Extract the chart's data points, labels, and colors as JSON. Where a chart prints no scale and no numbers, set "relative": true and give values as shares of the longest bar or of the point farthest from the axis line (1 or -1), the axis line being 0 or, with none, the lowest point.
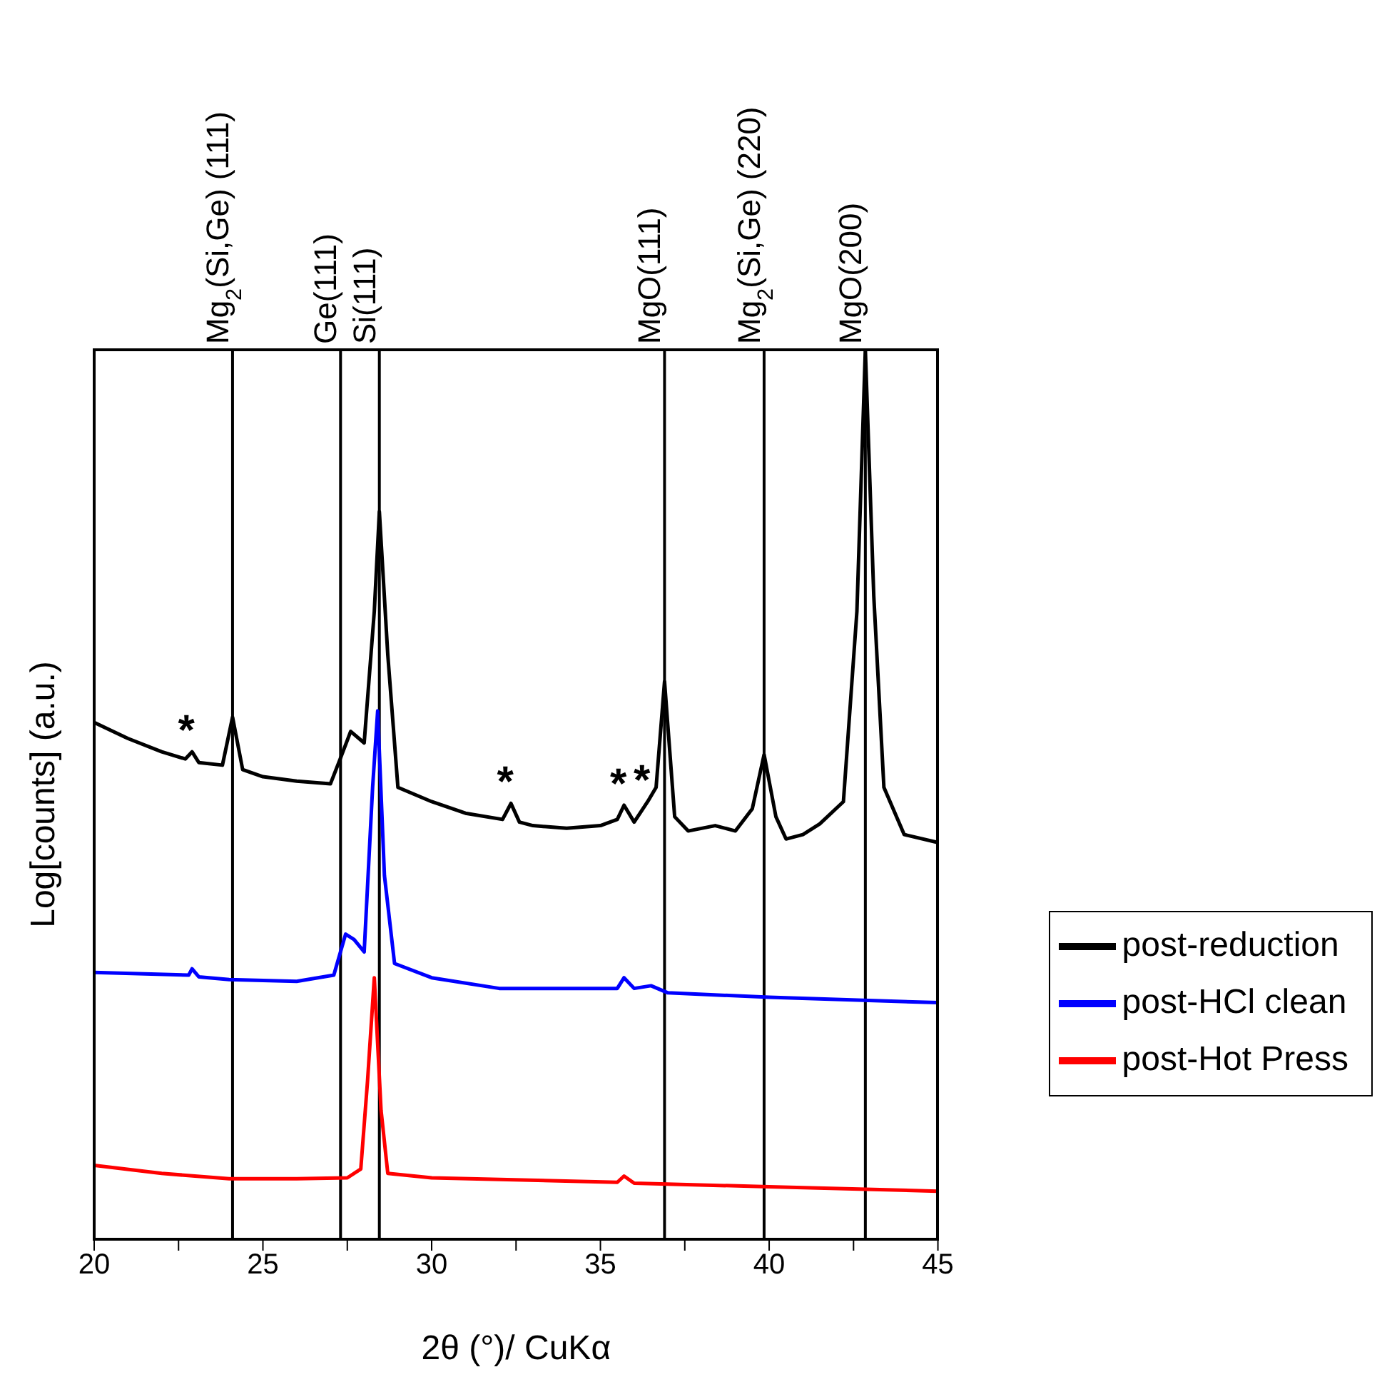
{
  "chart_data": {
    "type": "line",
    "relative": true,
    "xlabel": "2θ (°)/ CuKα",
    "ylabel": "Log[counts] (a.u.)",
    "xlim": [
      20,
      45
    ],
    "xticks": [
      20,
      {
        "value": 22.5,
        "label": null
      },
      25,
      {
        "value": 27.5,
        "label": null
      },
      30,
      {
        "value": 32.5,
        "label": null
      },
      35,
      {
        "value": 37.5,
        "label": null
      },
      40,
      {
        "value": 42.5,
        "label": null
      },
      45
    ],
    "legend": "right",
    "grid": false,
    "marker": "none",
    "line_style": "solid",
    "series": [
      {
        "name": "post-reduction",
        "color": "#000000",
        "x": [
          20,
          21,
          22,
          22.7,
          22.9,
          23.1,
          23.8,
          24.1,
          24.4,
          25,
          26,
          27,
          27.3,
          27.6,
          28,
          28.3,
          28.45,
          28.7,
          29,
          30,
          31,
          32.1,
          32.35,
          32.6,
          33,
          34,
          35,
          35.5,
          35.7,
          36,
          36.4,
          36.65,
          36.9,
          37.2,
          37.6,
          38.4,
          39,
          39.5,
          39.85,
          40.2,
          40.5,
          41,
          41.5,
          42.2,
          42.6,
          42.85,
          43.1,
          43.4,
          44,
          45
        ],
        "values": [
          0.581,
          0.563,
          0.548,
          0.54,
          0.548,
          0.536,
          0.533,
          0.587,
          0.528,
          0.52,
          0.515,
          0.512,
          0.541,
          0.571,
          0.558,
          0.706,
          0.818,
          0.657,
          0.508,
          0.492,
          0.479,
          0.472,
          0.49,
          0.469,
          0.465,
          0.462,
          0.465,
          0.472,
          0.488,
          0.469,
          0.492,
          0.508,
          0.627,
          0.475,
          0.459,
          0.465,
          0.459,
          0.484,
          0.545,
          0.475,
          0.45,
          0.455,
          0.467,
          0.492,
          0.706,
          1,
          0.723,
          0.508,
          0.455,
          0.446
        ]
      },
      {
        "name": "post-HCl clean",
        "color": "#0000ff",
        "x": [
          20,
          22.8,
          22.9,
          23.1,
          24,
          26,
          27.1,
          27.45,
          27.7,
          28,
          28.25,
          28.4,
          28.6,
          28.9,
          30,
          32,
          35.5,
          35.7,
          36,
          36.5,
          37,
          40,
          45
        ],
        "values": [
          0.3,
          0.297,
          0.304,
          0.295,
          0.292,
          0.29,
          0.297,
          0.343,
          0.337,
          0.323,
          0.508,
          0.594,
          0.409,
          0.31,
          0.294,
          0.282,
          0.282,
          0.294,
          0.282,
          0.285,
          0.277,
          0.272,
          0.266
        ]
      },
      {
        "name": "post-Hot Press",
        "color": "#ff0000",
        "x": [
          20,
          22,
          24,
          26,
          27.5,
          27.9,
          28.1,
          28.3,
          28.5,
          28.7,
          30,
          35.5,
          35.7,
          36,
          40,
          45
        ],
        "values": [
          0.083,
          0.074,
          0.068,
          0.068,
          0.069,
          0.079,
          0.178,
          0.294,
          0.145,
          0.074,
          0.069,
          0.064,
          0.071,
          0.063,
          0.059,
          0.054
        ]
      }
    ],
    "ref_lines": [
      {
        "axis": "x",
        "value": 24.1,
        "label": "Mg$_{2}$(Si,Ge) (111)",
        "color": "#000000"
      },
      {
        "axis": "x",
        "value": 27.3,
        "label": "Ge(111)",
        "color": "#000000"
      },
      {
        "axis": "x",
        "value": 28.45,
        "label": "Si(111)",
        "color": "#000000"
      },
      {
        "axis": "x",
        "value": 36.9,
        "label": "MgO(111)",
        "color": "#000000"
      },
      {
        "axis": "x",
        "value": 39.85,
        "label": "Mg$_{2}$(Si,Ge) (220)",
        "color": "#000000"
      },
      {
        "axis": "x",
        "value": 42.85,
        "label": "MgO(200)",
        "color": "#000000"
      }
    ],
    "annotations": [
      {
        "text": "*",
        "x": 22.9,
        "y": 0.548
      },
      {
        "text": "*",
        "x": 32.35,
        "y": 0.49
      },
      {
        "text": "*",
        "x": 35.7,
        "y": 0.488
      },
      {
        "text": "*",
        "x": 36.4,
        "y": 0.492
      }
    ]
  }
}
